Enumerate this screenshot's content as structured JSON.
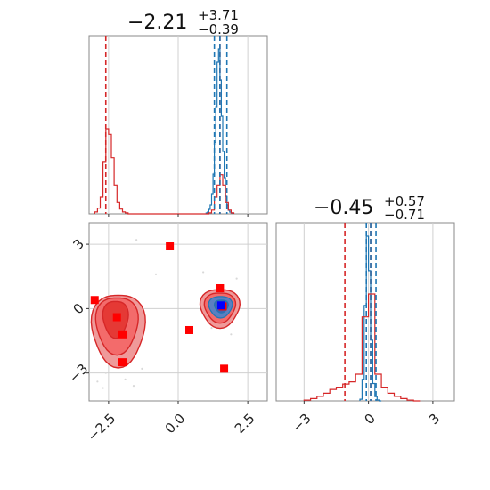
{
  "chart_data": {
    "type": "corner",
    "titles": {
      "p0": {
        "value": "−2.21",
        "plus": "+3.71",
        "minus": "−0.39"
      },
      "p1": {
        "value": "−0.45",
        "plus": "+0.57",
        "minus": "−0.71"
      }
    },
    "axes": {
      "p0": {
        "range": [
          -3.2,
          3.2
        ],
        "ticks": [
          -2.5,
          0.0,
          2.5
        ],
        "tick_labels": [
          "−2.5",
          "0.0",
          "2.5"
        ]
      },
      "p1": {
        "range": [
          -4.3,
          4.0
        ],
        "ticks": [
          -3,
          0,
          3
        ],
        "tick_labels": [
          "−3",
          "0",
          "3"
        ]
      }
    },
    "grid": true,
    "colors": {
      "red": "#d62728",
      "blue": "#1f77b4",
      "red_fill": "#ef9a9a",
      "red_dark": "#e53935",
      "red_mid": "#f36b6b",
      "blue_fill": "#5b7fc0",
      "frame": "#888888",
      "grid": "#d0d0d0"
    },
    "hist_p0": {
      "red": {
        "bins": [
          -3.0,
          -2.9,
          -2.8,
          -2.7,
          -2.6,
          -2.5,
          -2.4,
          -2.3,
          -2.2,
          -2.1,
          -2.0,
          -1.9,
          -1.8,
          -1.7,
          1.1,
          1.2,
          1.3,
          1.4,
          1.5,
          1.6,
          1.7,
          1.8,
          1.9
        ],
        "counts": [
          2,
          6,
          18,
          55,
          90,
          85,
          60,
          30,
          12,
          5,
          2,
          1,
          0,
          0,
          1,
          4,
          18,
          30,
          42,
          30,
          12,
          4,
          1
        ]
      },
      "blue": {
        "bins": [
          1.0,
          1.05,
          1.1,
          1.15,
          1.2,
          1.25,
          1.3,
          1.35,
          1.4,
          1.45,
          1.5,
          1.55,
          1.6,
          1.65,
          1.7,
          1.75,
          1.8,
          1.85,
          1.9
        ],
        "counts": [
          1,
          2,
          5,
          10,
          22,
          45,
          80,
          120,
          170,
          185,
          150,
          110,
          70,
          40,
          20,
          10,
          4,
          2,
          1
        ]
      },
      "red_lines": [
        -2.6,
        1.5
      ],
      "blue_lines": [
        1.3,
        1.5,
        1.75
      ]
    },
    "hist_p1": {
      "red": {
        "bins": [
          -3.0,
          -2.7,
          -2.4,
          -2.1,
          -1.8,
          -1.5,
          -1.2,
          -0.9,
          -0.6,
          -0.3,
          0.0,
          0.3,
          0.6,
          0.9,
          1.2,
          1.5,
          1.8,
          2.1
        ],
        "counts": [
          1,
          3,
          6,
          10,
          15,
          18,
          22,
          25,
          35,
          110,
          140,
          35,
          18,
          10,
          6,
          3,
          1,
          0
        ]
      },
      "blue": {
        "bins": [
          -0.4,
          -0.3,
          -0.2,
          -0.1,
          0.0,
          0.1,
          0.2,
          0.3,
          0.4,
          0.5
        ],
        "counts": [
          2,
          25,
          110,
          190,
          150,
          70,
          20,
          5,
          1,
          0
        ]
      },
      "red_lines": [
        -1.1,
        0.1
      ],
      "blue_lines": [
        -0.1,
        0.1,
        0.35
      ]
    },
    "scatter_2d": {
      "red_squares": [
        {
          "x": -3.0,
          "y": 0.4
        },
        {
          "x": -2.2,
          "y": -0.4
        },
        {
          "x": -2.0,
          "y": -1.2
        },
        {
          "x": -2.0,
          "y": -2.5
        },
        {
          "x": -0.3,
          "y": 2.9
        },
        {
          "x": 0.4,
          "y": -1.0
        },
        {
          "x": 1.5,
          "y": 0.95
        },
        {
          "x": 1.65,
          "y": -2.8
        },
        {
          "x": 1.6,
          "y": 0.1
        }
      ],
      "blue_square": {
        "x": 1.55,
        "y": 0.15
      },
      "faint_points": [
        {
          "x": -2.9,
          "y": -3.4
        },
        {
          "x": -2.7,
          "y": -3.7
        },
        {
          "x": -2.6,
          "y": -3.0
        },
        {
          "x": -1.9,
          "y": -3.3
        },
        {
          "x": -1.6,
          "y": -3.6
        },
        {
          "x": -1.3,
          "y": -2.8
        },
        {
          "x": -1.5,
          "y": 3.2
        },
        {
          "x": -0.8,
          "y": 1.6
        },
        {
          "x": 1.2,
          "y": -0.9
        },
        {
          "x": 1.9,
          "y": -1.2
        },
        {
          "x": 2.1,
          "y": 1.4
        },
        {
          "x": 0.9,
          "y": 1.7
        }
      ]
    }
  }
}
